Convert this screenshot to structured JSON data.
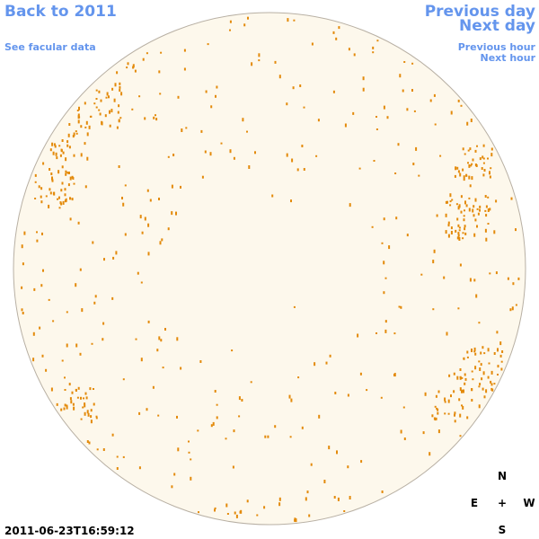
{
  "nav": {
    "back": "Back to 2011",
    "previous_day": "Previous day",
    "next_day": "Next day",
    "facular_data": "See facular data",
    "previous_hour": "Previous hour",
    "next_hour": "Next hour"
  },
  "timestamp": "2011-06-23T16:59:12",
  "compass": {
    "north": "N",
    "east": "E",
    "center": "+",
    "west": "W",
    "south": "S"
  }
}
